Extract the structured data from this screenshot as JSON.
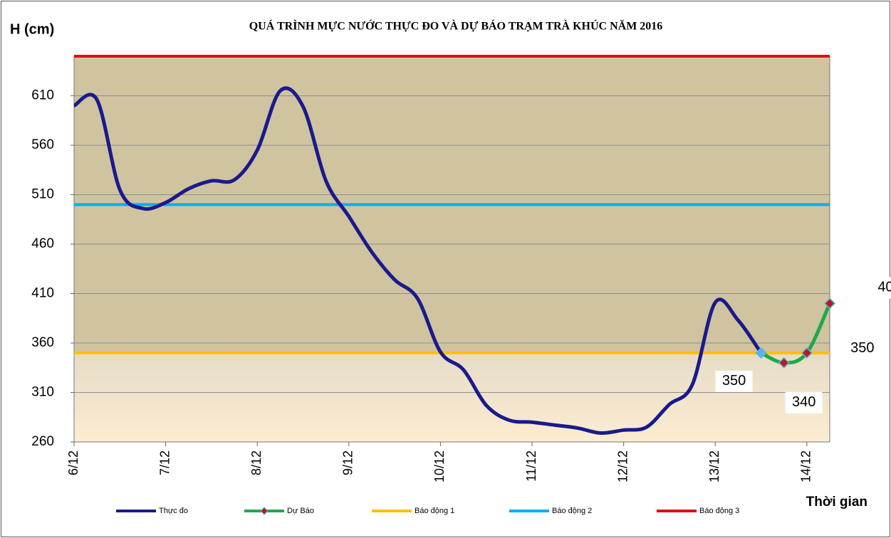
{
  "chart_data": {
    "type": "line",
    "title": "QUÁ TRÌNH MỰC NƯỚC THỰC ĐO VÀ DỰ BÁO TRẠM TRÀ KHÚC NĂM 2016",
    "y_label": "H (cm)",
    "x_label": "Thời gian",
    "xlim": [
      6,
      14.25
    ],
    "xticks": [
      {
        "value": 6,
        "label": "6/12"
      },
      {
        "value": 7,
        "label": "7/12"
      },
      {
        "value": 8,
        "label": "8/12"
      },
      {
        "value": 9,
        "label": "9/12"
      },
      {
        "value": 10,
        "label": "10/12"
      },
      {
        "value": 11,
        "label": "11/12"
      },
      {
        "value": 12,
        "label": "12/12"
      },
      {
        "value": 13,
        "label": "13/12"
      },
      {
        "value": 14,
        "label": "14/12"
      }
    ],
    "ylim": [
      260,
      650
    ],
    "yticks": [
      260,
      310,
      360,
      410,
      460,
      510,
      560,
      610
    ],
    "grid": true,
    "series": [
      {
        "name": "Thực đo",
        "color": "#1a1a8c",
        "x": [
          6,
          6.25,
          6.5,
          6.75,
          7,
          7.25,
          7.5,
          7.75,
          8,
          8.25,
          8.5,
          8.75,
          9,
          9.25,
          9.5,
          9.75,
          10,
          10.25,
          10.5,
          10.75,
          11,
          11.25,
          11.5,
          11.75,
          12,
          12.25,
          12.5,
          12.75,
          13,
          13.25,
          13.5
        ],
        "values": [
          600,
          606,
          515,
          496,
          502,
          516,
          524,
          525,
          555,
          615,
          599,
          524,
          488,
          452,
          424,
          405,
          351,
          333,
          297,
          282,
          280,
          277,
          274,
          269,
          272,
          275,
          298,
          318,
          401,
          383,
          350
        ]
      },
      {
        "name": "Dự Báo",
        "color": "#1fa84a",
        "x": [
          13.5,
          13.75,
          14,
          14.25
        ],
        "values": [
          350,
          340,
          350,
          400
        ]
      },
      {
        "name": "Báo động 1",
        "color": "#ffc000",
        "x": [
          6,
          14.25
        ],
        "values": [
          350,
          350
        ]
      },
      {
        "name": "Báo động 2",
        "color": "#00b0f0",
        "x": [
          6,
          14.25
        ],
        "values": [
          500,
          500
        ]
      },
      {
        "name": "Báo động 3",
        "color": "#e01010",
        "x": [
          6,
          14.25
        ],
        "values": [
          650,
          650
        ]
      }
    ]
  }
}
